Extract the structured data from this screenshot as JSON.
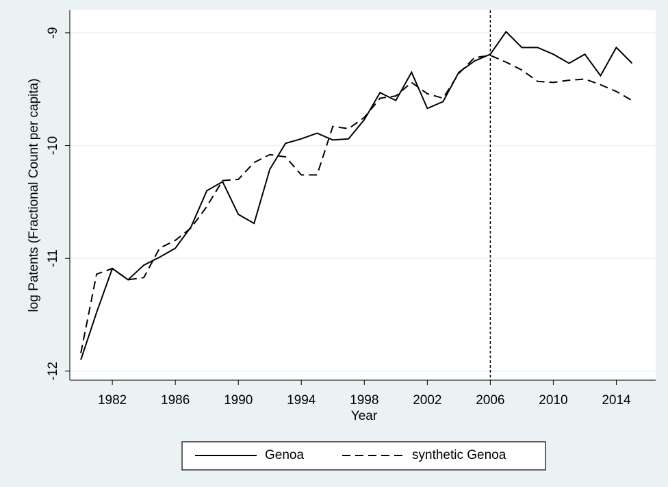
{
  "chart_data": {
    "type": "line",
    "x_label": "Year",
    "y_label": "log Patents (Fractional Count per capita)",
    "x": [
      1980,
      1981,
      1982,
      1983,
      1984,
      1985,
      1986,
      1987,
      1988,
      1989,
      1990,
      1991,
      1992,
      1993,
      1994,
      1995,
      1996,
      1997,
      1998,
      1999,
      2000,
      2001,
      2002,
      2003,
      2004,
      2005,
      2006,
      2007,
      2008,
      2009,
      2010,
      2011,
      2012,
      2013,
      2014,
      2015
    ],
    "series": [
      {
        "name": "Genoa",
        "color": "#000000",
        "style": "solid",
        "values": [
          -11.9,
          -11.48,
          -11.09,
          -11.19,
          -11.06,
          -10.99,
          -10.91,
          -10.72,
          -10.4,
          -10.32,
          -10.61,
          -10.69,
          -10.21,
          -9.98,
          -9.94,
          -9.89,
          -9.95,
          -9.94,
          -9.77,
          -9.53,
          -9.6,
          -9.35,
          -9.67,
          -9.61,
          -9.35,
          -9.25,
          -9.19,
          -8.99,
          -9.13,
          -9.13,
          -9.19,
          -9.27,
          -9.19,
          -9.38,
          -9.13,
          -9.27
        ]
      },
      {
        "name": "synthetic Genoa",
        "color": "#000000",
        "style": "dashed",
        "values": [
          -11.84,
          -11.14,
          -11.09,
          -11.19,
          -11.17,
          -10.91,
          -10.84,
          -10.73,
          -10.54,
          -10.31,
          -10.3,
          -10.15,
          -10.08,
          -10.1,
          -10.26,
          -10.26,
          -9.83,
          -9.85,
          -9.75,
          -9.58,
          -9.56,
          -9.44,
          -9.54,
          -9.58,
          -9.36,
          -9.22,
          -9.2,
          -9.26,
          -9.33,
          -9.43,
          -9.44,
          -9.42,
          -9.41,
          -9.46,
          -9.52,
          -9.6
        ]
      }
    ],
    "xlim": [
      1979.3,
      2016.5
    ],
    "xticks": [
      1982,
      1986,
      1990,
      1994,
      1998,
      2002,
      2006,
      2010,
      2014
    ],
    "ylim": [
      -12.08,
      -8.8
    ],
    "yticks": [
      -12,
      -11,
      -10,
      -9
    ],
    "xline": 2006,
    "grid": true,
    "legend_position": "bottom"
  }
}
